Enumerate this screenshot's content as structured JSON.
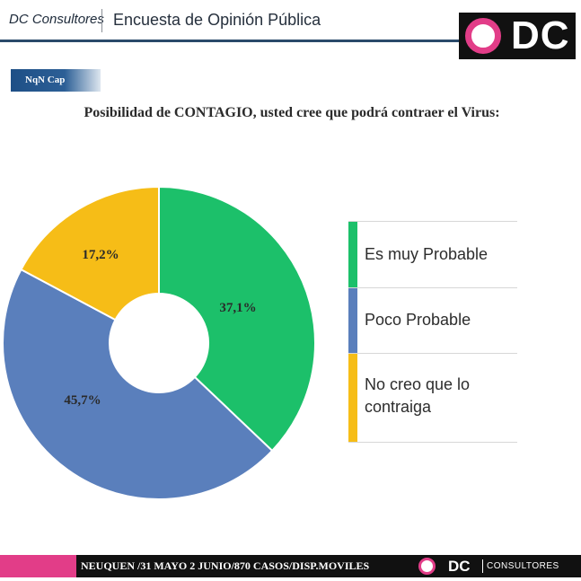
{
  "header": {
    "brand": "DC Consultores",
    "title": "Encuesta de Opinión Pública",
    "logo_text": "DC",
    "colors": {
      "pink": "#e23d88",
      "dark": "#111111",
      "navy": "#2a4a6a"
    }
  },
  "tag": {
    "label": "NqN Cap"
  },
  "chart_data": {
    "type": "pie",
    "title": "Posibilidad de CONTAGIO, usted cree que podrá contraer el Virus:",
    "donut": true,
    "labels": [
      "Es muy Probable",
      "Poco Probable",
      "No creo que lo contraiga"
    ],
    "values": [
      37.1,
      45.7,
      17.2
    ],
    "value_labels": [
      "37,1%",
      "45,7%",
      "17,2%"
    ],
    "colors": [
      "#1cc06a",
      "#5a7fbc",
      "#f6bd17"
    ],
    "legend_placement": "right"
  },
  "legend": {
    "items": [
      {
        "label": "Es muy Probable",
        "color": "#1cc06a"
      },
      {
        "label": "Poco Probable",
        "color": "#5a7fbc"
      },
      {
        "label": "No creo que lo contraiga",
        "color": "#f6bd17"
      }
    ]
  },
  "footer": {
    "text": "NEUQUEN /31 MAYO 2 JUNIO/870 CASOS/DISP.MOVILES",
    "logo_dc": "DC",
    "logo_consultores": "CONSULTORES"
  }
}
